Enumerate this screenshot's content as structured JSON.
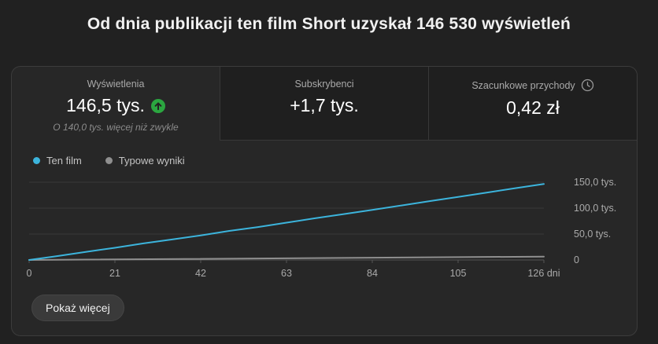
{
  "page": {
    "title": "Od dnia publikacji ten film Short uzyskał 146 530 wyświetleń"
  },
  "tabs": [
    {
      "label": "Wyświetlenia",
      "value": "146,5 tys.",
      "delta_note": "O 140,0 tys. więcej niż zwykle",
      "selected": true,
      "trend_icon": "arrow-up-circle",
      "trend_color": "#2ba640"
    },
    {
      "label": "Subskrybenci",
      "value": "+1,7 tys.",
      "selected": false
    },
    {
      "label": "Szacunkowe przychody",
      "value": "0,42 zł",
      "selected": false,
      "info_icon": "clock"
    }
  ],
  "legend": [
    {
      "label": "Ten film",
      "color": "#3cb4dc"
    },
    {
      "label": "Typowe wyniki",
      "color": "#8f8f8f"
    }
  ],
  "chart_data": {
    "type": "line",
    "xlabel": "dni",
    "xlim": [
      0,
      126
    ],
    "ylim": [
      0,
      150000
    ],
    "x_ticks": [
      0,
      21,
      42,
      63,
      84,
      105,
      126
    ],
    "x_tick_labels": [
      "0",
      "21",
      "42",
      "63",
      "84",
      "105",
      "126 dni"
    ],
    "y_ticks": [
      0,
      50000,
      100000,
      150000
    ],
    "y_tick_labels": [
      "0",
      "50,0 tys.",
      "100,0 tys.",
      "150,0 tys."
    ],
    "grid": true,
    "legend_position": "top-left",
    "series": [
      {
        "name": "Typowe wyniki",
        "color": "#8f8f8f",
        "x": [
          0,
          126
        ],
        "y": [
          0,
          6500
        ]
      },
      {
        "name": "Ten film",
        "color": "#3cb4dc",
        "x": [
          0,
          7,
          14,
          21,
          28,
          35,
          42,
          49,
          56,
          63,
          70,
          77,
          84,
          91,
          98,
          105,
          112,
          119,
          126
        ],
        "y": [
          0,
          7500,
          15800,
          23500,
          32000,
          39500,
          47500,
          56000,
          63500,
          72000,
          80500,
          88500,
          96500,
          105000,
          113500,
          121500,
          130000,
          138500,
          146530
        ]
      }
    ]
  },
  "footer": {
    "show_more_label": "Pokaż więcej"
  },
  "colors": {
    "page_bg": "#212121",
    "card_bg": "#272727",
    "unselected_tab_bg": "#1f1f1f",
    "border": "#3c3c3c",
    "grid_line": "#3a3a3a",
    "axis_line": "#565656",
    "axis_text": "#aaaaaa",
    "accent_blue": "#3cb4dc",
    "trend_green": "#2ba640"
  }
}
